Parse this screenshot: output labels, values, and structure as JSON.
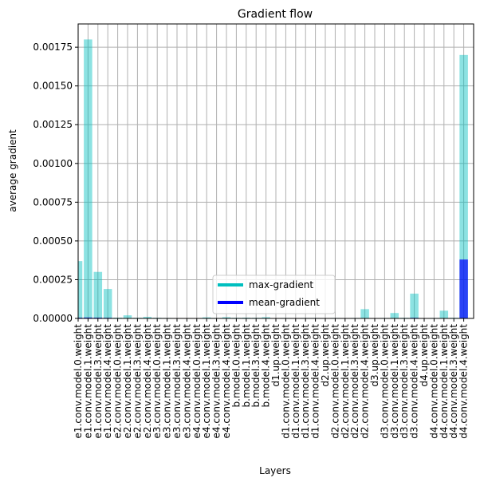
{
  "chart_data": {
    "type": "bar",
    "title": "Gradient flow",
    "xlabel": "Layers",
    "ylabel": "average gradient",
    "ylim": [
      0,
      0.0019
    ],
    "yticks": [
      "0.00000",
      "0.00025",
      "0.00050",
      "0.00075",
      "0.00100",
      "0.00125",
      "0.00150",
      "0.00175"
    ],
    "grid": true,
    "legend_position": "lower-center",
    "categories": [
      "e1.conv.model.0.weight",
      "e1.conv.model.1.weight",
      "e1.conv.model.3.weight",
      "e1.conv.model.4.weight",
      "e2.conv.model.0.weight",
      "e2.conv.model.1.weight",
      "e2.conv.model.3.weight",
      "e2.conv.model.4.weight",
      "e3.conv.model.0.weight",
      "e3.conv.model.1.weight",
      "e3.conv.model.3.weight",
      "e3.conv.model.4.weight",
      "e4.conv.model.0.weight",
      "e4.conv.model.1.weight",
      "e4.conv.model.3.weight",
      "e4.conv.model.4.weight",
      "b.model.0.weight",
      "b.model.1.weight",
      "b.model.3.weight",
      "b.model.4.weight",
      "d1.up.weight",
      "d1.conv.model.0.weight",
      "d1.conv.model.1.weight",
      "d1.conv.model.3.weight",
      "d1.conv.model.4.weight",
      "d2.up.weight",
      "d2.conv.model.0.weight",
      "d2.conv.model.1.weight",
      "d2.conv.model.3.weight",
      "d2.conv.model.4.weight",
      "d3.up.weight",
      "d3.conv.model.0.weight",
      "d3.conv.model.1.weight",
      "d3.conv.model.3.weight",
      "d3.conv.model.4.weight",
      "d4.up.weight",
      "d4.conv.model.0.weight",
      "d4.conv.model.1.weight",
      "d4.conv.model.3.weight",
      "d4.conv.model.4.weight"
    ],
    "series": [
      {
        "name": "max-gradient",
        "color": "#00bfbf",
        "values": [
          0.00037,
          0.0018,
          0.0003,
          0.00019,
          5e-06,
          2e-05,
          4e-06,
          1e-05,
          4e-06,
          3e-06,
          2e-06,
          2e-06,
          2e-06,
          7e-06,
          3e-06,
          8e-06,
          4e-06,
          5e-06,
          4e-06,
          8e-06,
          2e-06,
          3e-06,
          2e-06,
          3e-06,
          3e-06,
          2e-06,
          3e-06,
          2e-06,
          3e-06,
          6e-05,
          2e-06,
          3e-06,
          3.5e-05,
          4e-06,
          0.00016,
          2e-06,
          3e-06,
          5e-05,
          4e-06,
          0.0017
        ]
      },
      {
        "name": "mean-gradient",
        "color": "#0000ff",
        "values": [
          5e-06,
          6e-06,
          5e-06,
          4e-06,
          5e-07,
          1e-06,
          5e-07,
          1e-06,
          5e-07,
          5e-07,
          5e-07,
          5e-07,
          5e-07,
          1e-06,
          5e-07,
          1e-06,
          5e-07,
          5e-07,
          5e-07,
          1e-06,
          5e-07,
          5e-07,
          5e-07,
          5e-07,
          5e-07,
          5e-07,
          5e-07,
          5e-07,
          5e-07,
          2e-06,
          5e-07,
          5e-07,
          1e-06,
          5e-07,
          4e-06,
          5e-07,
          5e-07,
          2e-06,
          5e-07,
          0.00038
        ]
      }
    ]
  }
}
